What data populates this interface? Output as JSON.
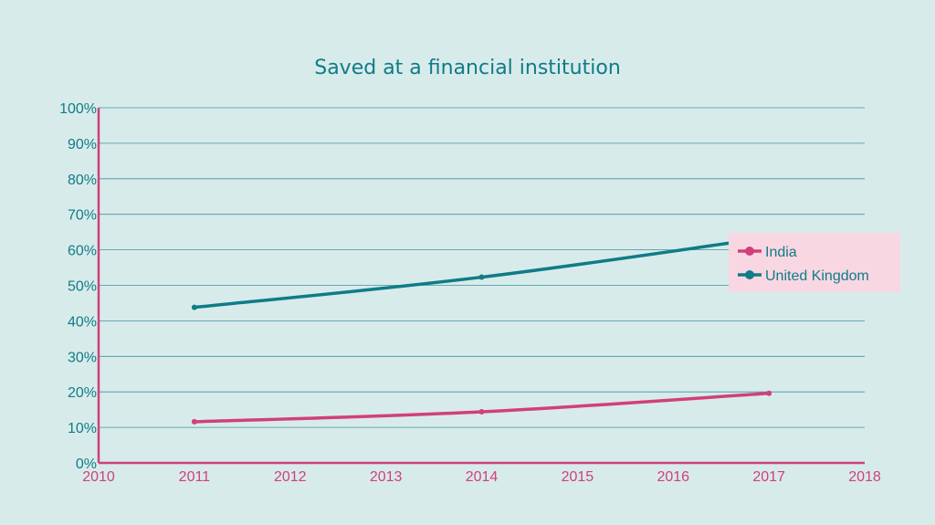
{
  "chart_data": {
    "type": "line",
    "title": "Saved at a financial institution",
    "xlabel": "",
    "ylabel": "",
    "xlim": [
      2010,
      2018
    ],
    "ylim": [
      0,
      100
    ],
    "x_ticks": [
      "2010",
      "2011",
      "2012",
      "2013",
      "2014",
      "2015",
      "2016",
      "2017",
      "2018"
    ],
    "y_ticks": [
      "0%",
      "10%",
      "20%",
      "30%",
      "40%",
      "50%",
      "60%",
      "70%",
      "80%",
      "90%",
      "100%"
    ],
    "grid": true,
    "legend": "right",
    "series": [
      {
        "name": "India",
        "color": "#d1407a",
        "x": [
          2011,
          2014,
          2017
        ],
        "values": [
          11.6,
          14.4,
          19.6
        ]
      },
      {
        "name": "United Kingdom",
        "color": "#0f7c86",
        "x": [
          2011,
          2014,
          2017
        ],
        "values": [
          43.8,
          52.3,
          63.5
        ]
      }
    ]
  },
  "colors": {
    "background": "#d8ebeb",
    "axis": "#d1407a",
    "grid": "#3f95a0",
    "text": "#0f7c86",
    "legend_bg": "#f8d7e3"
  }
}
